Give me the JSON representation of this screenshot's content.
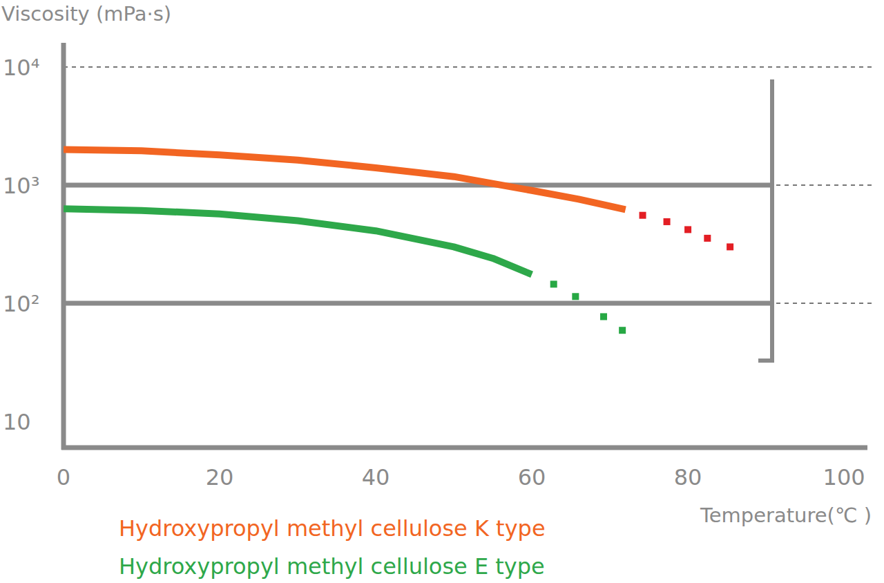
{
  "chart_data": {
    "type": "line",
    "y_label": "Viscosity (mPa·s)",
    "x_label": "Temperature(℃ )",
    "log": "y",
    "grid": true,
    "legend": "bottom-left",
    "xlim": [
      0,
      103
    ],
    "xticks": [
      0,
      20,
      40,
      60,
      80,
      100
    ],
    "ylim": [
      6,
      16000
    ],
    "yticks": [
      10,
      {
        "value": 100,
        "label": "10²"
      },
      {
        "value": 1000,
        "label": "10³"
      },
      {
        "value": 10000,
        "label": "10⁴"
      }
    ],
    "series": [
      {
        "name": "Hydroxypropyl methyl cellulose K type",
        "color": "#f26522",
        "line_style": "solid",
        "x": [
          0,
          10,
          20,
          30,
          40,
          50,
          60,
          66,
          72
        ],
        "values": [
          2000,
          1950,
          1800,
          1630,
          1400,
          1180,
          900,
          760,
          620
        ]
      },
      {
        "name": "Hydroxypropyl methyl cellulose E type",
        "color": "#2ea84a",
        "line_style": "solid",
        "x": [
          0,
          10,
          20,
          30,
          40,
          50,
          55,
          60
        ],
        "values": [
          630,
          610,
          570,
          500,
          410,
          300,
          240,
          175
        ]
      },
      {
        "type": "scatter",
        "color": "#e31e24",
        "marker": "square",
        "x": [
          74.2,
          77.3,
          80,
          82.5,
          85.4
        ],
        "values": [
          555,
          490,
          420,
          355,
          300
        ]
      },
      {
        "type": "scatter",
        "color": "#27a844",
        "marker": "square",
        "x": [
          62.8,
          65.6,
          69.2,
          71.6
        ],
        "values": [
          145,
          114,
          77,
          59
        ]
      }
    ]
  }
}
